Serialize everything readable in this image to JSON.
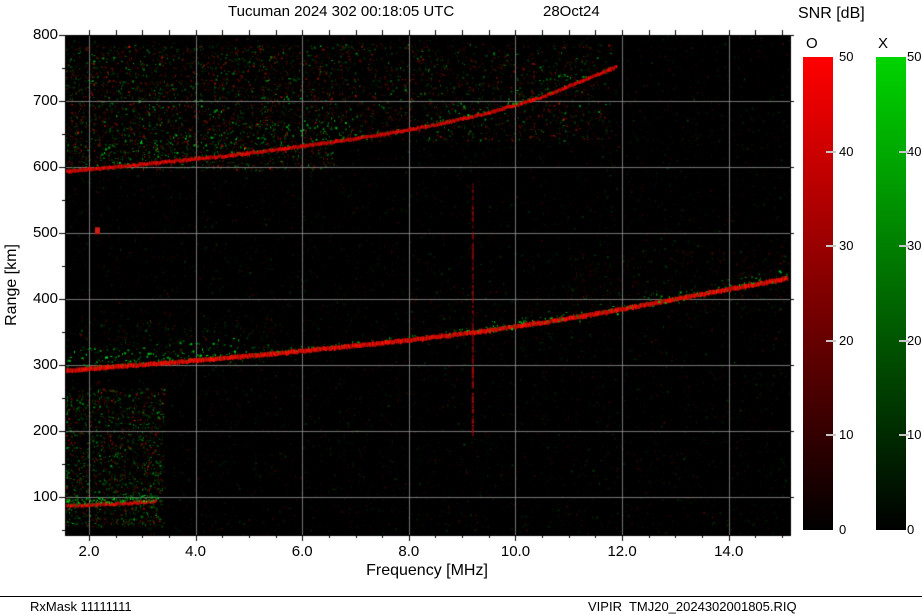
{
  "header": {
    "station_time": "Tucuman 2024 302 00:18:05 UTC",
    "date": "28Oct24"
  },
  "colorbar": {
    "title": "SNR [dB]",
    "o_label": "O",
    "x_label": "X",
    "ticks": [
      0,
      10,
      20,
      30,
      40,
      50
    ],
    "max_db": 50,
    "o_color_top": "#ff0000",
    "x_color_top": "#00d400"
  },
  "footer": {
    "rx_mask": "RxMask 11111111",
    "file": "VIPIR  TMJ20_2024302001805.RIQ"
  },
  "chart_data": {
    "type": "heatmap",
    "title": "Tucuman ionogram, day 302 2024, 00:18:05 UTC (28Oct24)",
    "xlabel": "Frequency [MHz]",
    "ylabel": "Range [km]",
    "xlim": [
      1.55,
      15.15
    ],
    "ylim": [
      42,
      800
    ],
    "x_ticks": [
      2,
      4,
      6,
      8,
      10,
      12,
      14
    ],
    "x_tick_labels": [
      "2.0",
      "4.0",
      "6.0",
      "8.0",
      "10.0",
      "12.0",
      "14.0"
    ],
    "x_minor_step": 0.5,
    "y_ticks": [
      100,
      200,
      300,
      400,
      500,
      600,
      700,
      800
    ],
    "y_minor_step": 50,
    "grid": true,
    "grid_color": "#9a9a9a",
    "background": "#000000",
    "o_mode_color": "#ff0000",
    "x_mode_color": "#00cc00",
    "traces": [
      {
        "name": "f-layer-echo-o",
        "mode": "O",
        "style": "line",
        "width": 4,
        "green_fringe": 0.15,
        "color": [
          215,
          15,
          5
        ],
        "points": [
          [
            1.55,
            291
          ],
          [
            2.5,
            297
          ],
          [
            3.5,
            303
          ],
          [
            4.5,
            310
          ],
          [
            5.5,
            317
          ],
          [
            6.5,
            325
          ],
          [
            7.5,
            333
          ],
          [
            8.5,
            342
          ],
          [
            9.5,
            352
          ],
          [
            10.5,
            364
          ],
          [
            11.5,
            377
          ],
          [
            12.5,
            392
          ],
          [
            13.5,
            407
          ],
          [
            14.3,
            419
          ],
          [
            15.1,
            431
          ]
        ]
      },
      {
        "name": "f-layer-echo-x-low",
        "mode": "X",
        "style": "scatter",
        "density": 0.55,
        "offset": [
          5,
          30
        ],
        "color": [
          0,
          195,
          30
        ],
        "points": [
          [
            1.6,
            294
          ],
          [
            3.0,
            300
          ],
          [
            4.8,
            312
          ]
        ]
      },
      {
        "name": "f-layer-echo-x-high",
        "mode": "X",
        "style": "scatter",
        "density": 0.3,
        "offset": [
          -6,
          16
        ],
        "color": [
          0,
          180,
          25
        ],
        "points": [
          [
            9.0,
            347
          ],
          [
            11.0,
            370
          ],
          [
            13.0,
            400
          ],
          [
            15.1,
            431
          ]
        ]
      },
      {
        "name": "second-hop-echo-o",
        "mode": "O",
        "style": "line",
        "width": 3,
        "green_fringe": 0.1,
        "color": [
          200,
          10,
          5
        ],
        "points": [
          [
            1.55,
            593
          ],
          [
            2.5,
            600
          ],
          [
            3.5,
            608
          ],
          [
            4.5,
            616
          ],
          [
            5.5,
            626
          ],
          [
            6.5,
            637
          ],
          [
            7.5,
            649
          ],
          [
            8.5,
            664
          ],
          [
            9.5,
            682
          ],
          [
            10.5,
            706
          ],
          [
            11.2,
            729
          ],
          [
            11.9,
            752
          ]
        ]
      },
      {
        "name": "second-hop-echo-x",
        "mode": "X",
        "style": "scatter",
        "density": 0.45,
        "offset": [
          6,
          40
        ],
        "color": [
          0,
          185,
          25
        ],
        "points": [
          [
            2.2,
            598
          ],
          [
            4.0,
            613
          ],
          [
            6.0,
            633
          ],
          [
            7.2,
            645
          ]
        ]
      },
      {
        "name": "second-hop-echo-x-upper",
        "mode": "X",
        "style": "scatter",
        "density": 0.3,
        "offset": [
          2,
          25
        ],
        "color": [
          0,
          170,
          20
        ],
        "points": [
          [
            8.5,
            664
          ],
          [
            10.0,
            695
          ],
          [
            11.4,
            734
          ]
        ]
      },
      {
        "name": "e-layer-echo-o",
        "mode": "O",
        "style": "line",
        "width": 3,
        "green_fringe": 0.2,
        "color": [
          195,
          15,
          5
        ],
        "points": [
          [
            1.55,
            86
          ],
          [
            2.2,
            88
          ],
          [
            2.8,
            90
          ],
          [
            3.25,
            93
          ]
        ]
      },
      {
        "name": "e-layer-echo-x",
        "mode": "X",
        "style": "scatter",
        "density": 0.9,
        "offset": [
          1,
          10
        ],
        "color": [
          0,
          205,
          35
        ],
        "points": [
          [
            1.55,
            88
          ],
          [
            2.4,
            90
          ],
          [
            3.3,
            94
          ]
        ]
      }
    ],
    "noise_regions": [
      {
        "f": [
          1.55,
          6.6
        ],
        "r": [
          595,
          785
        ],
        "count": 2800,
        "green_ratio": 0.45,
        "min": 20,
        "max": 150
      },
      {
        "f": [
          6.6,
          11.8
        ],
        "r": [
          640,
          788
        ],
        "count": 1400,
        "green_ratio": 0.42,
        "min": 18,
        "max": 140
      },
      {
        "f": [
          1.55,
          3.4
        ],
        "r": [
          55,
          265
        ],
        "count": 1600,
        "green_ratio": 0.6,
        "min": 20,
        "max": 145
      },
      {
        "f": [
          1.55,
          15.15
        ],
        "r": [
          42,
          800
        ],
        "count": 9500,
        "green_ratio": 0.45,
        "min": 6,
        "max": 48
      },
      {
        "f": [
          1.8,
          5.5
        ],
        "r": [
          300,
          370
        ],
        "count": 300,
        "green_ratio": 0.55,
        "min": 15,
        "max": 95
      },
      {
        "f": [
          11.0,
          15.15
        ],
        "r": [
          380,
          475
        ],
        "count": 450,
        "green_ratio": 0.3,
        "min": 10,
        "max": 70
      },
      {
        "f": [
          8.0,
          11.5
        ],
        "r": [
          330,
          420
        ],
        "count": 250,
        "green_ratio": 0.25,
        "min": 10,
        "max": 60
      }
    ],
    "interference_line": {
      "freq": 9.2,
      "range": [
        195,
        575
      ]
    },
    "artifact_blob": {
      "freq": 2.15,
      "range": 504
    }
  }
}
